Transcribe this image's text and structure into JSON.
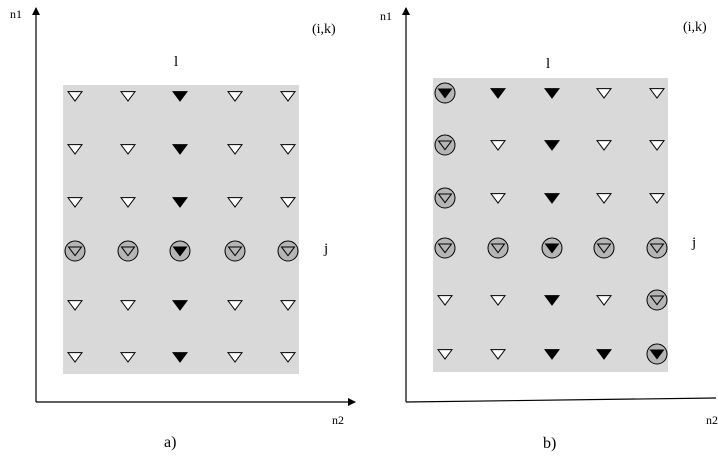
{
  "panels": [
    {
      "id": "a",
      "axis_y_label": "n1",
      "axis_x_label": "n2",
      "corner_label": "(i,k)",
      "column_label": "l",
      "row_label": "j",
      "caption": "a)",
      "grid": [
        [
          "open",
          "open",
          "filled",
          "open",
          "open"
        ],
        [
          "open",
          "open",
          "filled",
          "open",
          "open"
        ],
        [
          "open",
          "open",
          "filled",
          "open",
          "open"
        ],
        [
          "circled-gray",
          "circled-gray",
          "circled-black",
          "circled-gray",
          "circled-gray"
        ],
        [
          "open",
          "open",
          "filled",
          "open",
          "open"
        ],
        [
          "open",
          "open",
          "filled",
          "open",
          "open"
        ]
      ]
    },
    {
      "id": "b",
      "axis_y_label": "n1",
      "axis_x_label": "n2",
      "corner_label": "(i,k)",
      "column_label": "l",
      "row_label": "j",
      "caption": "b)",
      "grid": [
        [
          "circled-black",
          "filled",
          "filled",
          "open",
          "open"
        ],
        [
          "circled-gray",
          "open",
          "filled",
          "open",
          "open"
        ],
        [
          "circled-gray",
          "open",
          "filled",
          "open",
          "open"
        ],
        [
          "circled-gray",
          "circled-gray",
          "circled-black",
          "circled-gray",
          "circled-gray"
        ],
        [
          "open",
          "open",
          "filled",
          "open",
          "circled-gray"
        ],
        [
          "open",
          "open",
          "filled",
          "filled",
          "circled-black"
        ]
      ]
    }
  ],
  "colors": {
    "region_fill": "#d9d9d9",
    "circle_fill": "#b5b5b5",
    "marker_filled": "#000000",
    "marker_open": "#ffffff",
    "stroke": "#000000"
  }
}
